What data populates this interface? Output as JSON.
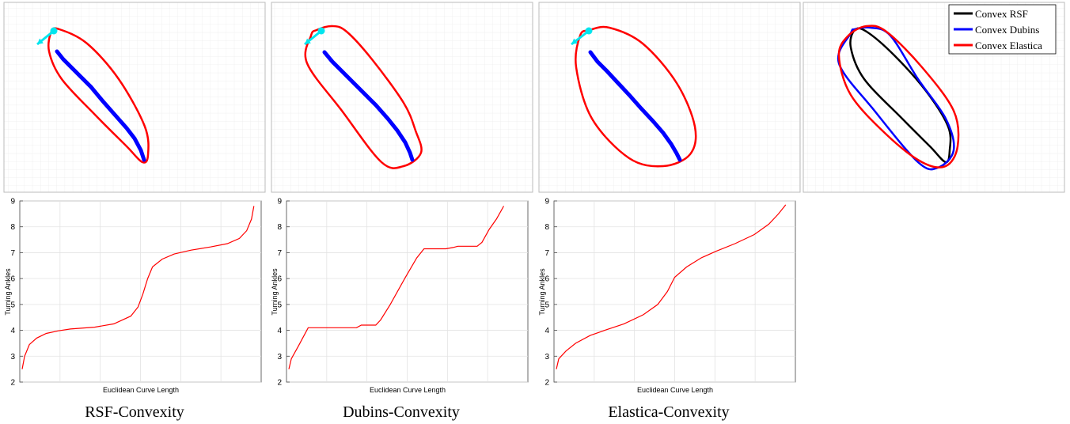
{
  "captions": [
    "RSF-Convexity",
    "Dubins-Convexity",
    "Elastica-Convexity"
  ],
  "legend": {
    "entries": [
      {
        "label": "Convex RSF",
        "color": "#000000"
      },
      {
        "label": "Convex Dubins",
        "color": "#0000ff"
      },
      {
        "label": "Convex Elastica",
        "color": "#ff0000"
      }
    ],
    "placement": "top-right"
  },
  "colors": {
    "hull": "#ff0000",
    "trajectory": "#0000ff",
    "marker": "#00e5ee",
    "grid": "#e6e6e6"
  },
  "chart_data": [
    {
      "type": "line",
      "grid": true,
      "tick_labels": "none",
      "description_role": "RSF convex hull",
      "series": [
        {
          "kind": "hull",
          "points": [
            [
              65,
              40
            ],
            [
              62,
              65
            ],
            [
              78,
              100
            ],
            [
              120,
              145
            ],
            [
              160,
              185
            ],
            [
              180,
              205
            ],
            [
              187,
              196
            ],
            [
              183,
              160
            ],
            [
              150,
              100
            ],
            [
              110,
              55
            ],
            [
              75,
              37
            ]
          ]
        },
        {
          "kind": "trajectory",
          "points": [
            [
              72,
              65
            ],
            [
              80,
              75
            ],
            [
              90,
              85
            ],
            [
              100,
              95
            ],
            [
              115,
              110
            ],
            [
              130,
              128
            ],
            [
              145,
              145
            ],
            [
              160,
              162
            ],
            [
              170,
              175
            ],
            [
              178,
              190
            ],
            [
              182,
              202
            ]
          ]
        },
        {
          "kind": "arrow",
          "points": [
            [
              68,
              39
            ],
            [
              47,
              56
            ]
          ]
        }
      ]
    },
    {
      "type": "line",
      "grid": true,
      "tick_labels": "none",
      "description_role": "Dubins convex hull",
      "series": [
        {
          "kind": "hull",
          "points": [
            [
              393,
              45
            ],
            [
              388,
              80
            ],
            [
              432,
              140
            ],
            [
              482,
              205
            ],
            [
              510,
              210
            ],
            [
              532,
              193
            ],
            [
              525,
              165
            ],
            [
              510,
              130
            ],
            [
              470,
              75
            ],
            [
              438,
              40
            ],
            [
              420,
              33
            ],
            [
              400,
              38
            ]
          ]
        },
        {
          "kind": "trajectory",
          "points": [
            [
              410,
              66
            ],
            [
              420,
              78
            ],
            [
              432,
              90
            ],
            [
              445,
              103
            ],
            [
              460,
              118
            ],
            [
              475,
              133
            ],
            [
              490,
              150
            ],
            [
              502,
              165
            ],
            [
              512,
              180
            ],
            [
              518,
              193
            ],
            [
              521,
              202
            ]
          ]
        },
        {
          "kind": "arrow",
          "points": [
            [
              406,
              39
            ],
            [
              385,
              56
            ]
          ]
        }
      ]
    },
    {
      "type": "line",
      "grid": true,
      "tick_labels": "none",
      "description_role": "Elastica convex hull",
      "series": [
        {
          "kind": "hull",
          "points": [
            [
              733,
              45
            ],
            [
              728,
              85
            ],
            [
              748,
              150
            ],
            [
              795,
              200
            ],
            [
              838,
              210
            ],
            [
              872,
              195
            ],
            [
              878,
              160
            ],
            [
              855,
              105
            ],
            [
              812,
              55
            ],
            [
              770,
              35
            ],
            [
              745,
              38
            ]
          ]
        },
        {
          "kind": "trajectory",
          "points": [
            [
              746,
              66
            ],
            [
              755,
              78
            ],
            [
              767,
              90
            ],
            [
              780,
              104
            ],
            [
              795,
              120
            ],
            [
              810,
              137
            ],
            [
              825,
              153
            ],
            [
              838,
              168
            ],
            [
              848,
              182
            ],
            [
              855,
              194
            ],
            [
              859,
              202
            ]
          ]
        },
        {
          "kind": "arrow",
          "points": [
            [
              744,
              39
            ],
            [
              722,
              56
            ]
          ]
        }
      ]
    },
    {
      "type": "line",
      "grid": true,
      "tick_labels": "none",
      "series": [
        {
          "name": "Convex RSF",
          "color": "#000000",
          "points": [
            [
              1080,
              38
            ],
            [
              1075,
              60
            ],
            [
              1092,
              100
            ],
            [
              1140,
              150
            ],
            [
              1175,
              185
            ],
            [
              1195,
              205
            ],
            [
              1200,
              190
            ],
            [
              1198,
              160
            ],
            [
              1170,
              115
            ],
            [
              1130,
              70
            ],
            [
              1095,
              40
            ]
          ]
        },
        {
          "name": "Convex Dubins",
          "color": "#0000ff",
          "points": [
            [
              1075,
              42
            ],
            [
              1060,
              80
            ],
            [
              1105,
              140
            ],
            [
              1160,
              205
            ],
            [
              1185,
              212
            ],
            [
              1205,
              190
            ],
            [
              1195,
              150
            ],
            [
              1160,
              100
            ],
            [
              1125,
              45
            ],
            [
              1100,
              35
            ],
            [
              1080,
              37
            ]
          ]
        },
        {
          "name": "Convex Elastica",
          "color": "#ff0000",
          "points": [
            [
              1072,
              45
            ],
            [
              1060,
              70
            ],
            [
              1075,
              120
            ],
            [
              1120,
              170
            ],
            [
              1165,
              205
            ],
            [
              1195,
              210
            ],
            [
              1210,
              185
            ],
            [
              1205,
              140
            ],
            [
              1165,
              85
            ],
            [
              1120,
              40
            ],
            [
              1095,
              33
            ]
          ]
        }
      ]
    },
    {
      "type": "line",
      "xlabel": "Euclidean Curve Length",
      "ylabel": "Turning Ankles",
      "ylim": [
        2,
        9
      ],
      "yticks": [
        2,
        3,
        4,
        5,
        6,
        7,
        8,
        9
      ],
      "grid": true,
      "series": [
        {
          "color": "#ff0000",
          "points": [
            [
              0.0,
              2.5
            ],
            [
              0.01,
              3.0
            ],
            [
              0.03,
              3.45
            ],
            [
              0.06,
              3.7
            ],
            [
              0.1,
              3.88
            ],
            [
              0.15,
              3.98
            ],
            [
              0.2,
              4.05
            ],
            [
              0.3,
              4.12
            ],
            [
              0.38,
              4.25
            ],
            [
              0.45,
              4.55
            ],
            [
              0.48,
              4.9
            ],
            [
              0.5,
              5.4
            ],
            [
              0.52,
              6.0
            ],
            [
              0.54,
              6.45
            ],
            [
              0.58,
              6.75
            ],
            [
              0.63,
              6.95
            ],
            [
              0.7,
              7.1
            ],
            [
              0.78,
              7.22
            ],
            [
              0.85,
              7.35
            ],
            [
              0.9,
              7.55
            ],
            [
              0.93,
              7.85
            ],
            [
              0.95,
              8.3
            ],
            [
              0.96,
              8.8
            ]
          ]
        }
      ]
    },
    {
      "type": "line",
      "xlabel": "Euclidean Curve Length",
      "ylabel": "Turning Ankles",
      "ylim": [
        2,
        9
      ],
      "yticks": [
        2,
        3,
        4,
        5,
        6,
        7,
        8,
        9
      ],
      "grid": true,
      "series": [
        {
          "color": "#ff0000",
          "points": [
            [
              0.0,
              2.5
            ],
            [
              0.01,
              2.9
            ],
            [
              0.04,
              3.4
            ],
            [
              0.08,
              4.1
            ],
            [
              0.2,
              4.1
            ],
            [
              0.28,
              4.1
            ],
            [
              0.3,
              4.2
            ],
            [
              0.36,
              4.2
            ],
            [
              0.38,
              4.4
            ],
            [
              0.42,
              5.0
            ],
            [
              0.48,
              6.0
            ],
            [
              0.53,
              6.8
            ],
            [
              0.56,
              7.15
            ],
            [
              0.65,
              7.15
            ],
            [
              0.68,
              7.2
            ],
            [
              0.7,
              7.25
            ],
            [
              0.78,
              7.25
            ],
            [
              0.8,
              7.4
            ],
            [
              0.83,
              7.9
            ],
            [
              0.86,
              8.3
            ],
            [
              0.89,
              8.8
            ]
          ]
        }
      ]
    },
    {
      "type": "line",
      "xlabel": "Euclidean Curve Length",
      "ylabel": "Turning Ankles",
      "ylim": [
        2,
        9
      ],
      "yticks": [
        2,
        3,
        4,
        5,
        6,
        7,
        8,
        9
      ],
      "grid": true,
      "series": [
        {
          "color": "#ff0000",
          "points": [
            [
              0.0,
              2.5
            ],
            [
              0.01,
              2.9
            ],
            [
              0.04,
              3.2
            ],
            [
              0.08,
              3.5
            ],
            [
              0.14,
              3.8
            ],
            [
              0.2,
              4.0
            ],
            [
              0.28,
              4.25
            ],
            [
              0.36,
              4.6
            ],
            [
              0.42,
              5.0
            ],
            [
              0.46,
              5.5
            ],
            [
              0.49,
              6.05
            ],
            [
              0.54,
              6.45
            ],
            [
              0.6,
              6.8
            ],
            [
              0.66,
              7.05
            ],
            [
              0.74,
              7.35
            ],
            [
              0.82,
              7.7
            ],
            [
              0.88,
              8.1
            ],
            [
              0.92,
              8.5
            ],
            [
              0.95,
              8.85
            ]
          ]
        }
      ]
    }
  ]
}
